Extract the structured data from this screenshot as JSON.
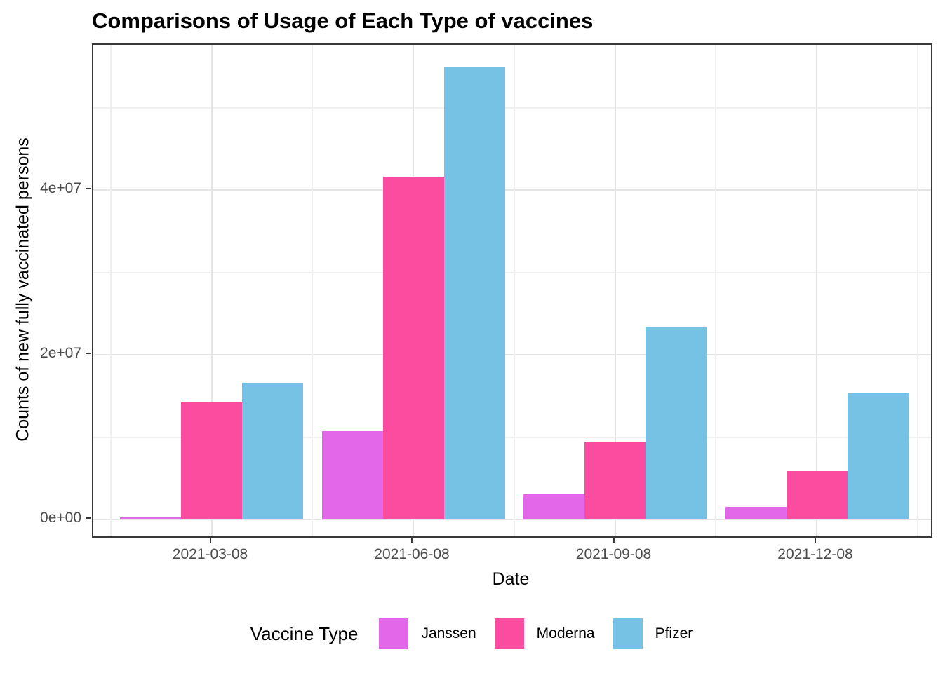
{
  "figure": {
    "title": "Comparisons of Usage of Each Type of vaccines"
  },
  "chart_data": {
    "type": "bar",
    "title": "Comparisons of Usage of Each Type of vaccines",
    "xlabel": "Date",
    "ylabel": "Counts of new fully vaccinated persons",
    "categories": [
      "2021-03-08",
      "2021-06-08",
      "2021-09-08",
      "2021-12-08"
    ],
    "series": [
      {
        "name": "Janssen",
        "color": "#e368e9",
        "values": [
          250000,
          10700000,
          3100000,
          1500000
        ]
      },
      {
        "name": "Moderna",
        "color": "#fc4ca0",
        "values": [
          14200000,
          41600000,
          9400000,
          5900000
        ]
      },
      {
        "name": "Pfizer",
        "color": "#76c2e5",
        "values": [
          16600000,
          54900000,
          23400000,
          15300000
        ]
      }
    ],
    "y_ticks": [
      {
        "value": 0,
        "label": "0e+00"
      },
      {
        "value": 20000000,
        "label": "2e+07"
      },
      {
        "value": 40000000,
        "label": "4e+07"
      }
    ],
    "y_minor_gridlines": [
      10000000,
      30000000,
      50000000
    ],
    "ylim": [
      0,
      57600000
    ],
    "grid": true,
    "legend_title": "Vaccine Type",
    "legend_position": "bottom"
  }
}
